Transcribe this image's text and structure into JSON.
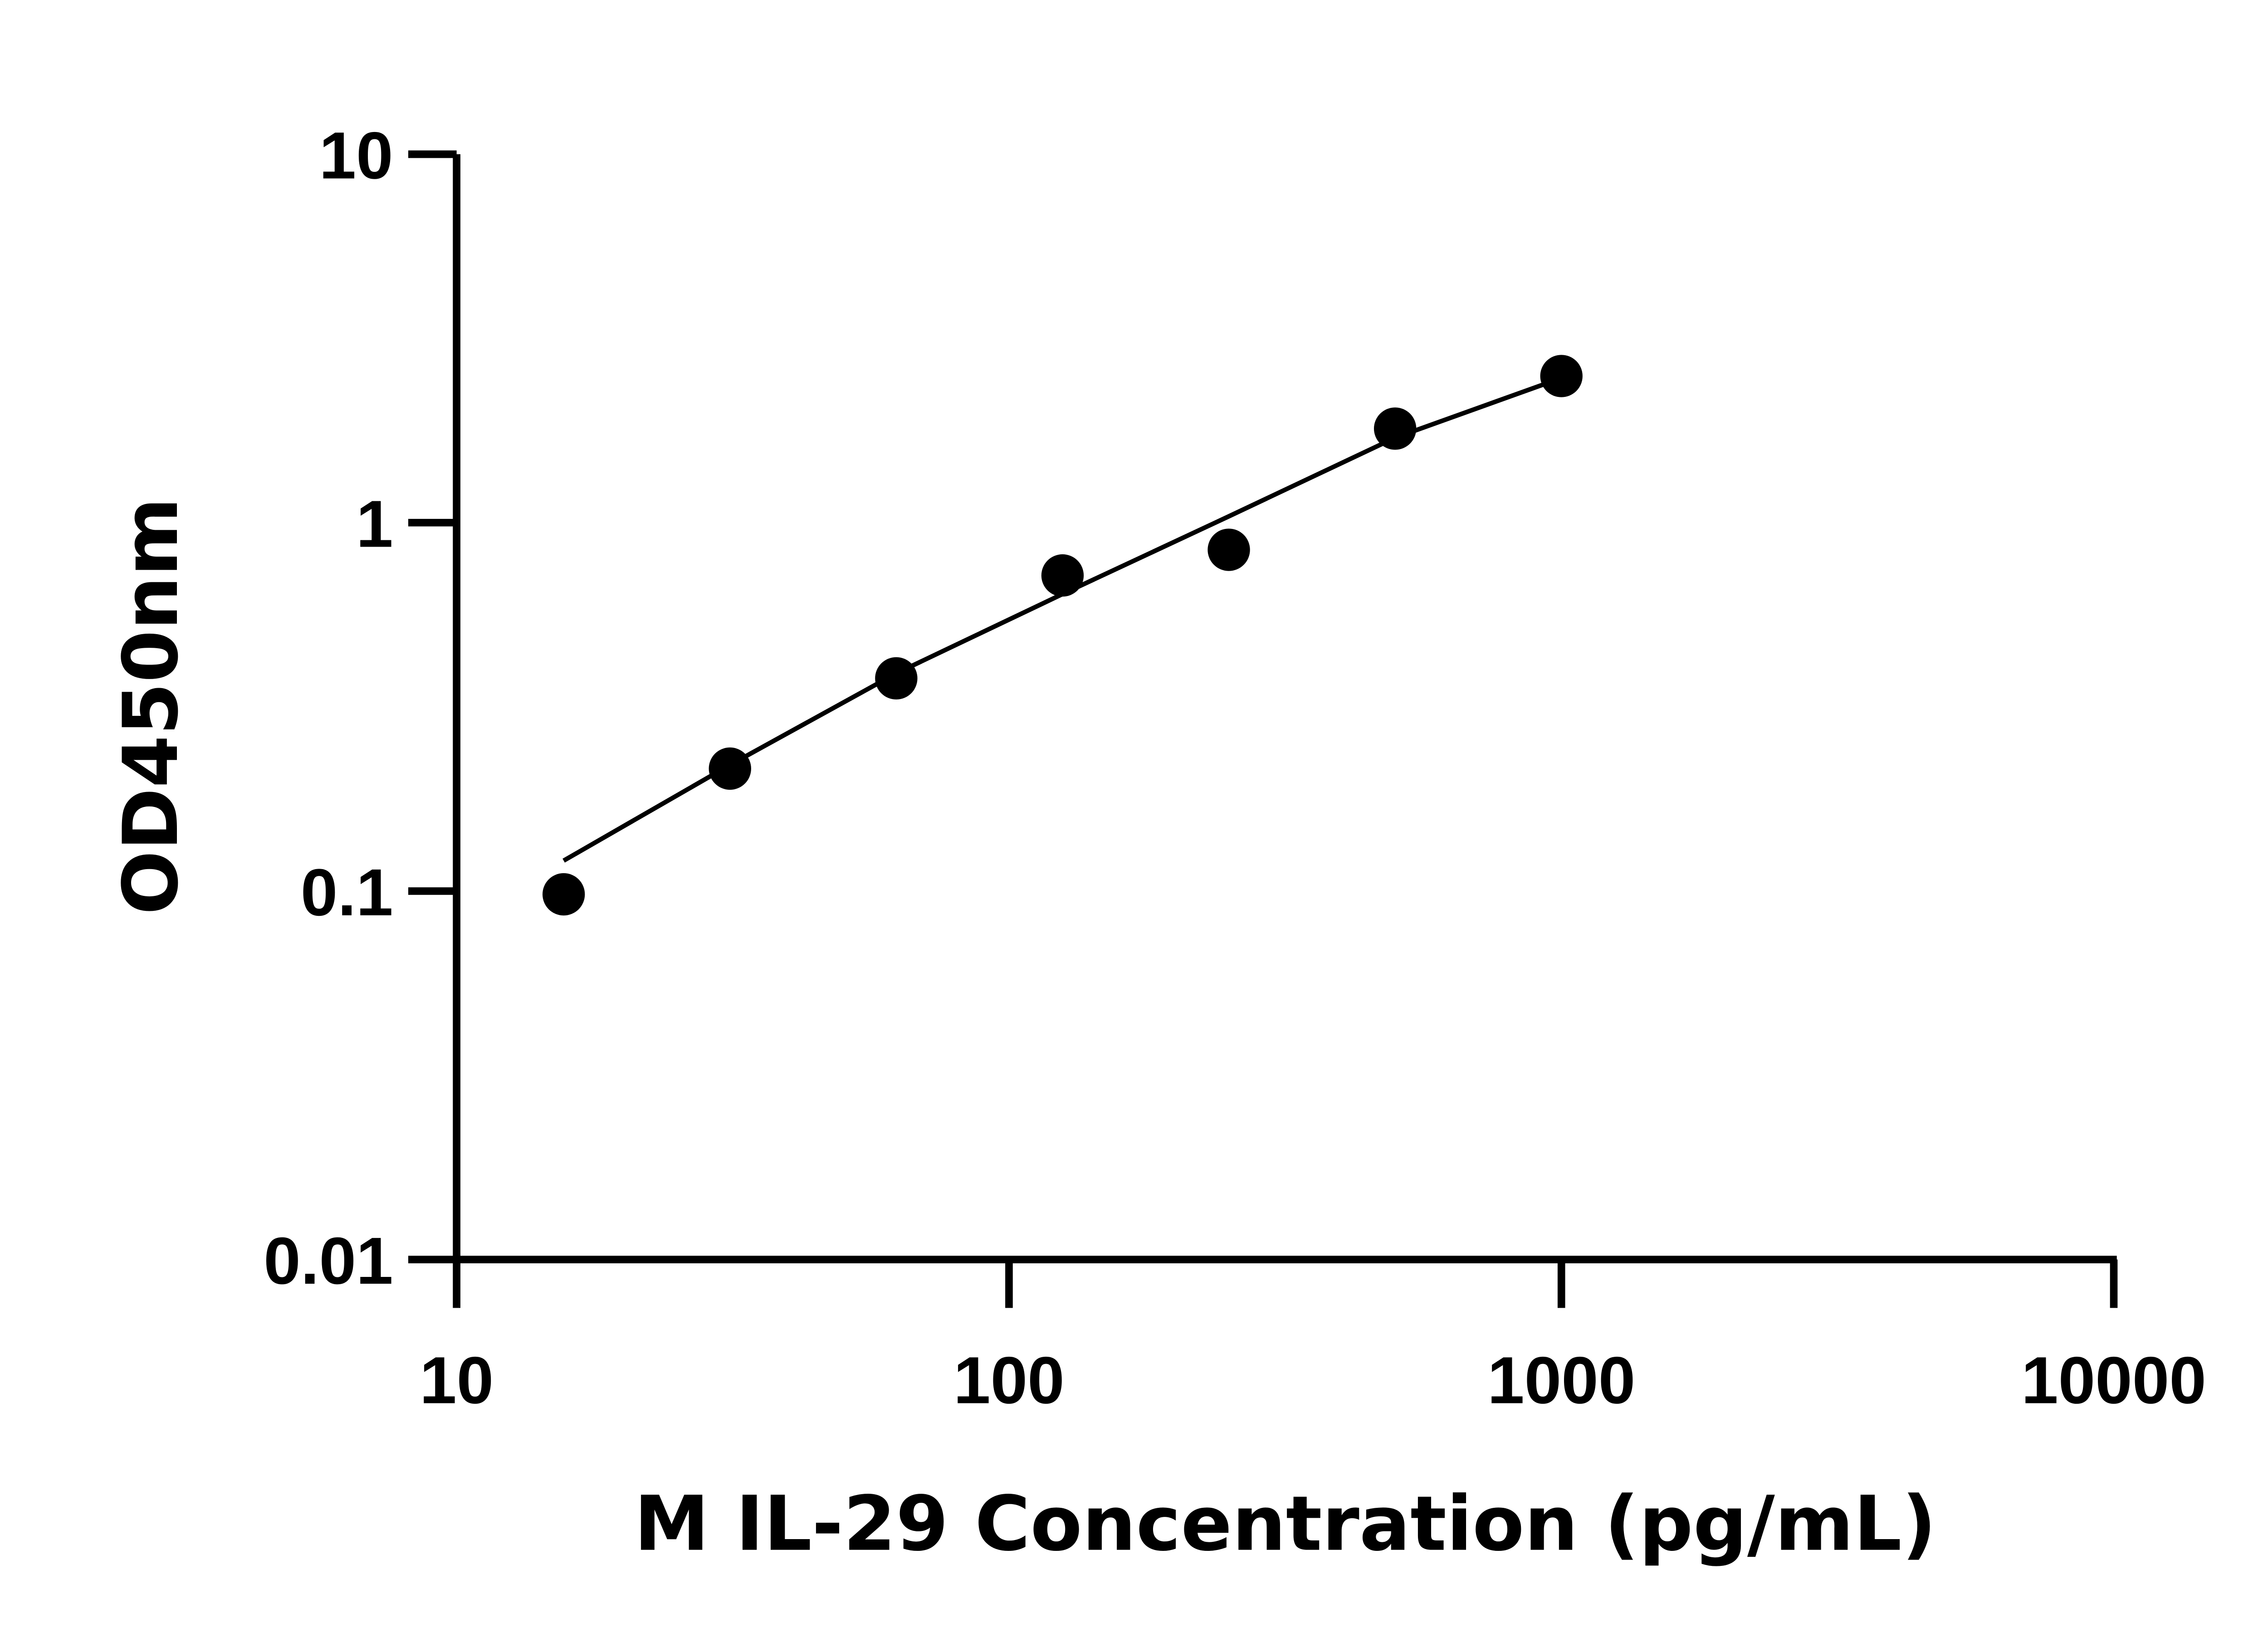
{
  "chart_data": {
    "type": "scatter",
    "title": "",
    "xlabel": "M IL-29 Concentration (pg/mL)",
    "ylabel": "OD450nm",
    "x_scale": "log",
    "y_scale": "log",
    "xlim": [
      10,
      10000
    ],
    "ylim": [
      0.01,
      10
    ],
    "x_ticks": [
      10,
      100,
      1000,
      10000
    ],
    "x_tick_labels": [
      "10",
      "100",
      "1000",
      "10000"
    ],
    "y_ticks": [
      0.01,
      0.1,
      1,
      10
    ],
    "y_tick_labels": [
      "0.01",
      "0.1",
      "1",
      "10"
    ],
    "grid": false,
    "legend": "none",
    "series": [
      {
        "type": "scatter",
        "x": [
          15.625,
          31.25,
          62.5,
          125,
          250,
          500,
          1000
        ],
        "y": [
          0.098,
          0.215,
          0.378,
          0.719,
          0.844,
          1.8,
          2.5
        ],
        "color": "#000000"
      },
      {
        "type": "line",
        "x": [
          15.625,
          31.25,
          62.5,
          125,
          250,
          500,
          1000
        ],
        "y": [
          0.121,
          0.22,
          0.39,
          0.64,
          1.04,
          1.7,
          2.47
        ],
        "color": "#000000"
      }
    ]
  }
}
